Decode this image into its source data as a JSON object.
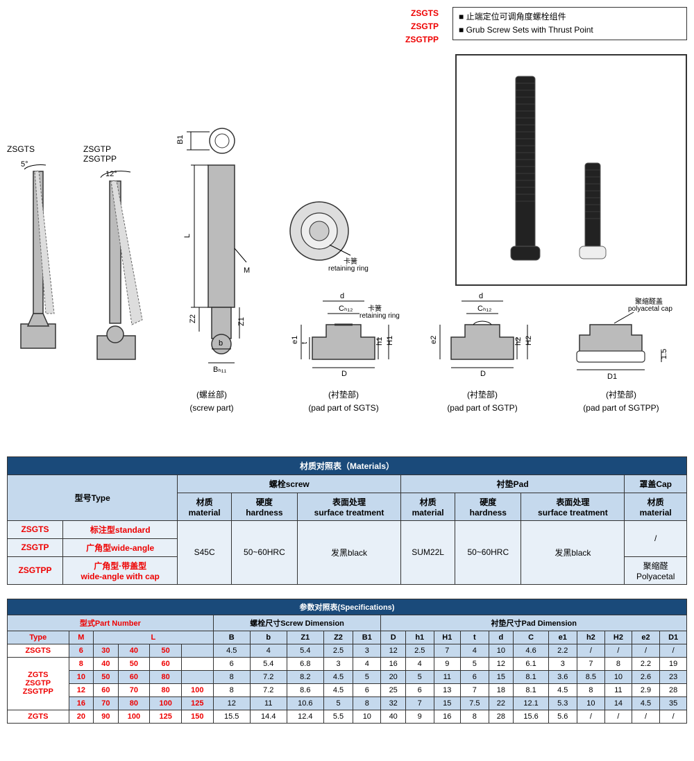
{
  "header": {
    "codes": [
      "ZSGTS",
      "ZSGTP",
      "ZSGTPP"
    ],
    "desc_cn": "■ 止端定位可调角度螺栓组件",
    "desc_en": "■ Grub Screw Sets with Thrust Point"
  },
  "diagrams": {
    "zsgts_label": "ZSGTS",
    "zsgtp_label": "ZSGTP\nZSGTPP",
    "angle5": "5°",
    "angle12": "12°",
    "screw_label_cn": "(螺丝部)",
    "screw_label_en": "(screw part)",
    "pad_sgts_cn": "(衬垫部)",
    "pad_sgts_en": "(pad part of SGTS)",
    "pad_sgtp_cn": "(衬垫部)",
    "pad_sgtp_en": "(pad part of SGTP)",
    "pad_sgtpp_cn": "(衬垫部)",
    "pad_sgtpp_en": "(pad part of SGTPP)",
    "retaining_cn": "卡簧",
    "retaining_en": "retaining ring",
    "polyacetal_cn": "聚缩醛盖",
    "polyacetal_en": "polyacetal cap",
    "dim_L": "L",
    "dim_M": "M",
    "dim_B1": "B1",
    "dim_Z1": "Z1",
    "dim_Z2": "Z2",
    "dim_b": "b",
    "dim_Bh11": "Bₕ₁₁",
    "dim_d": "d",
    "dim_Ch12": "Cₕ₁₂",
    "dim_D": "D",
    "dim_D1": "D1",
    "dim_t": "t",
    "dim_e1": "e1",
    "dim_e2": "e2",
    "dim_h1": "h1",
    "dim_H1": "H1",
    "dim_h2": "h2",
    "dim_H2": "H2",
    "dim_1_5": "1.5"
  },
  "materials": {
    "title": "材质对照表（Materials）",
    "type_hdr": "型号Type",
    "screw_hdr": "螺栓screw",
    "pad_hdr": "衬垫Pad",
    "cap_hdr": "罩盖Cap",
    "material_hdr": "材质\nmaterial",
    "hardness_hdr": "硬度\nhardness",
    "surface_hdr": "表面处理\nsurface treatment",
    "row1_code": "ZSGTS",
    "row1_type": "标注型standard",
    "row2_code": "ZSGTP",
    "row2_type": "广角型wide-angle",
    "row3_code": "ZSGTPP",
    "row3_type": "广角型·带盖型\nwide-angle with cap",
    "screw_mat": "S45C",
    "screw_hard": "50~60HRC",
    "screw_surf": "发黑black",
    "pad_mat": "SUM22L",
    "pad_hard": "50~60HRC",
    "pad_surf": "发黑black",
    "cap_none": "/",
    "cap_poly": "聚缩醛\nPolyacetal"
  },
  "specs": {
    "title": "参数对照表(Specifications)",
    "partno_hdr": "型式Part Number",
    "screw_dim_hdr": "螺栓尺寸Screw Dimension",
    "pad_dim_hdr": "衬垫尺寸Pad Dimension",
    "cols": [
      "Type",
      "M",
      "L",
      "",
      "",
      "",
      "B",
      "b",
      "Z1",
      "Z2",
      "B1",
      "D",
      "h1",
      "H1",
      "t",
      "d",
      "C",
      "e1",
      "h2",
      "H2",
      "e2",
      "D1"
    ],
    "type_hdr": "Type",
    "M_hdr": "M",
    "L_hdr": "L",
    "rows": [
      {
        "type": "ZSGTS",
        "M": "6",
        "L": [
          "30",
          "40",
          "50",
          ""
        ],
        "B": "4.5",
        "b": "4",
        "Z1": "5.4",
        "Z2": "2.5",
        "B1": "3",
        "D": "12",
        "h1": "2.5",
        "H1": "7",
        "t": "4",
        "d": "10",
        "C": "4.6",
        "e1": "2.2",
        "h2": "/",
        "H2": "/",
        "e2": "/",
        "D1": "/",
        "alt": true
      },
      {
        "type": "",
        "M": "8",
        "L": [
          "40",
          "50",
          "60",
          ""
        ],
        "B": "6",
        "b": "5.4",
        "Z1": "6.8",
        "Z2": "3",
        "B1": "4",
        "D": "16",
        "h1": "4",
        "H1": "9",
        "t": "5",
        "d": "12",
        "C": "6.1",
        "e1": "3",
        "h2": "7",
        "H2": "8",
        "e2": "2.2",
        "D1": "19",
        "alt": false
      },
      {
        "type": "ZGTS\nZSGTP\nZSGTPP",
        "M": "10",
        "L": [
          "50",
          "60",
          "80",
          ""
        ],
        "B": "8",
        "b": "7.2",
        "Z1": "8.2",
        "Z2": "4.5",
        "B1": "5",
        "D": "20",
        "h1": "5",
        "H1": "11",
        "t": "6",
        "d": "15",
        "C": "8.1",
        "e1": "3.6",
        "h2": "8.5",
        "H2": "10",
        "e2": "2.6",
        "D1": "23",
        "alt": true
      },
      {
        "type": "",
        "M": "12",
        "L": [
          "60",
          "70",
          "80",
          "100"
        ],
        "B": "8",
        "b": "7.2",
        "Z1": "8.6",
        "Z2": "4.5",
        "B1": "6",
        "D": "25",
        "h1": "6",
        "H1": "13",
        "t": "7",
        "d": "18",
        "C": "8.1",
        "e1": "4.5",
        "h2": "8",
        "H2": "11",
        "e2": "2.9",
        "D1": "28",
        "alt": false
      },
      {
        "type": "",
        "M": "16",
        "L": [
          "70",
          "80",
          "100",
          "125"
        ],
        "B": "12",
        "b": "11",
        "Z1": "10.6",
        "Z2": "5",
        "B1": "8",
        "D": "32",
        "h1": "7",
        "H1": "15",
        "t": "7.5",
        "d": "22",
        "C": "12.1",
        "e1": "5.3",
        "h2": "10",
        "H2": "14",
        "e2": "4.5",
        "D1": "35",
        "alt": true
      },
      {
        "type": "ZGTS",
        "M": "20",
        "L": [
          "90",
          "100",
          "125",
          "150"
        ],
        "B": "15.5",
        "b": "14.4",
        "Z1": "12.4",
        "Z2": "5.5",
        "B1": "10",
        "D": "40",
        "h1": "9",
        "H1": "16",
        "t": "8",
        "d": "28",
        "C": "15.6",
        "e1": "5.6",
        "h2": "/",
        "H2": "/",
        "e2": "/",
        "D1": "/",
        "alt": false
      }
    ]
  },
  "colors": {
    "header_blue": "#1a4a7a",
    "light_blue": "#c5d9ed",
    "red": "#e00000"
  }
}
